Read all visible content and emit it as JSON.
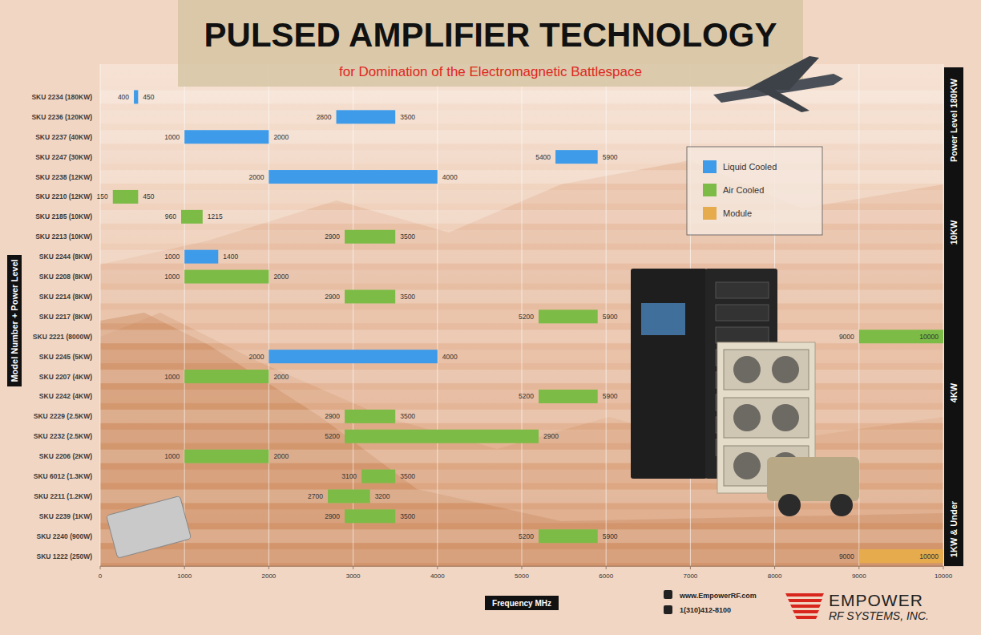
{
  "chart_data": {
    "type": "bar",
    "orientation": "horizontal",
    "title": "PULSED AMPLIFIER TECHNOLOGY",
    "subtitle": "for Domination of the Electromagnetic Battlespace",
    "xlabel": "Frequency MHz",
    "ylabel": "Model Number + Power Level",
    "categories": [
      "SKU 2234 (180KW)",
      "SKU 2236 (120KW)",
      "SKU 2237 (40KW)",
      "SKU 2247 (30KW)",
      "SKU 2238 (12KW)",
      "SKU 2210 (12KW)",
      "SKU 2185 (10KW)",
      "SKU 2213 (10KW)",
      "SKU 2244 (8KW)",
      "SKU 2208 (8KW)",
      "SKU 2214 (8KW)",
      "SKU 2217 (8KW)",
      "SKU 2221 (8000W)",
      "SKU 2245 (5KW)",
      "SKU 2207 (4KW)",
      "SKU 2242 (4KW)",
      "SKU 2229 (2.5KW)",
      "SKU 2232 (2.5KW)",
      "SKU 2206 (2KW)",
      "SKU 6012 (1.3KW)",
      "SKU 2211 (1.2KW)",
      "SKU 2239 (1KW)",
      "SKU 2240 (900W)",
      "SKU 1222 (250W)"
    ],
    "series": [
      {
        "name": "Liquid Cooled",
        "color": "#3d9be9",
        "values": [
          [
            400,
            450
          ],
          [
            2800,
            3500
          ],
          [
            1000,
            2000
          ],
          [
            5400,
            5900
          ],
          [
            2000,
            4000
          ],
          null,
          null,
          null,
          [
            1000,
            1400
          ],
          null,
          null,
          null,
          null,
          [
            2000,
            4000
          ],
          null,
          null,
          null,
          null,
          null,
          null,
          null,
          null,
          null,
          null
        ]
      },
      {
        "name": "Air Cooled",
        "color": "#7cbb45",
        "values": [
          null,
          null,
          null,
          null,
          null,
          [
            150,
            450
          ],
          [
            960,
            1215
          ],
          [
            2900,
            3500
          ],
          null,
          [
            1000,
            2000
          ],
          [
            2900,
            3500
          ],
          [
            5200,
            5900
          ],
          [
            9000,
            10000
          ],
          null,
          [
            1000,
            2000
          ],
          [
            5200,
            5900
          ],
          [
            2900,
            3500
          ],
          [
            5200,
            2900
          ],
          [
            1000,
            2000
          ],
          [
            3100,
            3500
          ],
          [
            2700,
            3200
          ],
          [
            2900,
            3500
          ],
          [
            5200,
            5900
          ],
          null
        ]
      },
      {
        "name": "Module",
        "color": "#e6ab4c",
        "values": [
          null,
          null,
          null,
          null,
          null,
          null,
          null,
          null,
          null,
          null,
          null,
          null,
          null,
          null,
          null,
          null,
          null,
          null,
          null,
          null,
          null,
          null,
          null,
          [
            9000,
            10000
          ]
        ]
      }
    ],
    "xlim": [
      0,
      10000
    ],
    "xticks": [
      0,
      1000,
      2000,
      3000,
      4000,
      5000,
      6000,
      7000,
      8000,
      9000,
      10000
    ],
    "grid": true,
    "data_labels": true,
    "legend": "upper right",
    "annotations": [
      "Power Level 180KW",
      "10KW",
      "4KW",
      "1KW & Under",
      "www.EmpowerRF.com",
      "1(310)412-8100",
      "EMPOWER",
      "RF SYSTEMS, INC."
    ]
  }
}
